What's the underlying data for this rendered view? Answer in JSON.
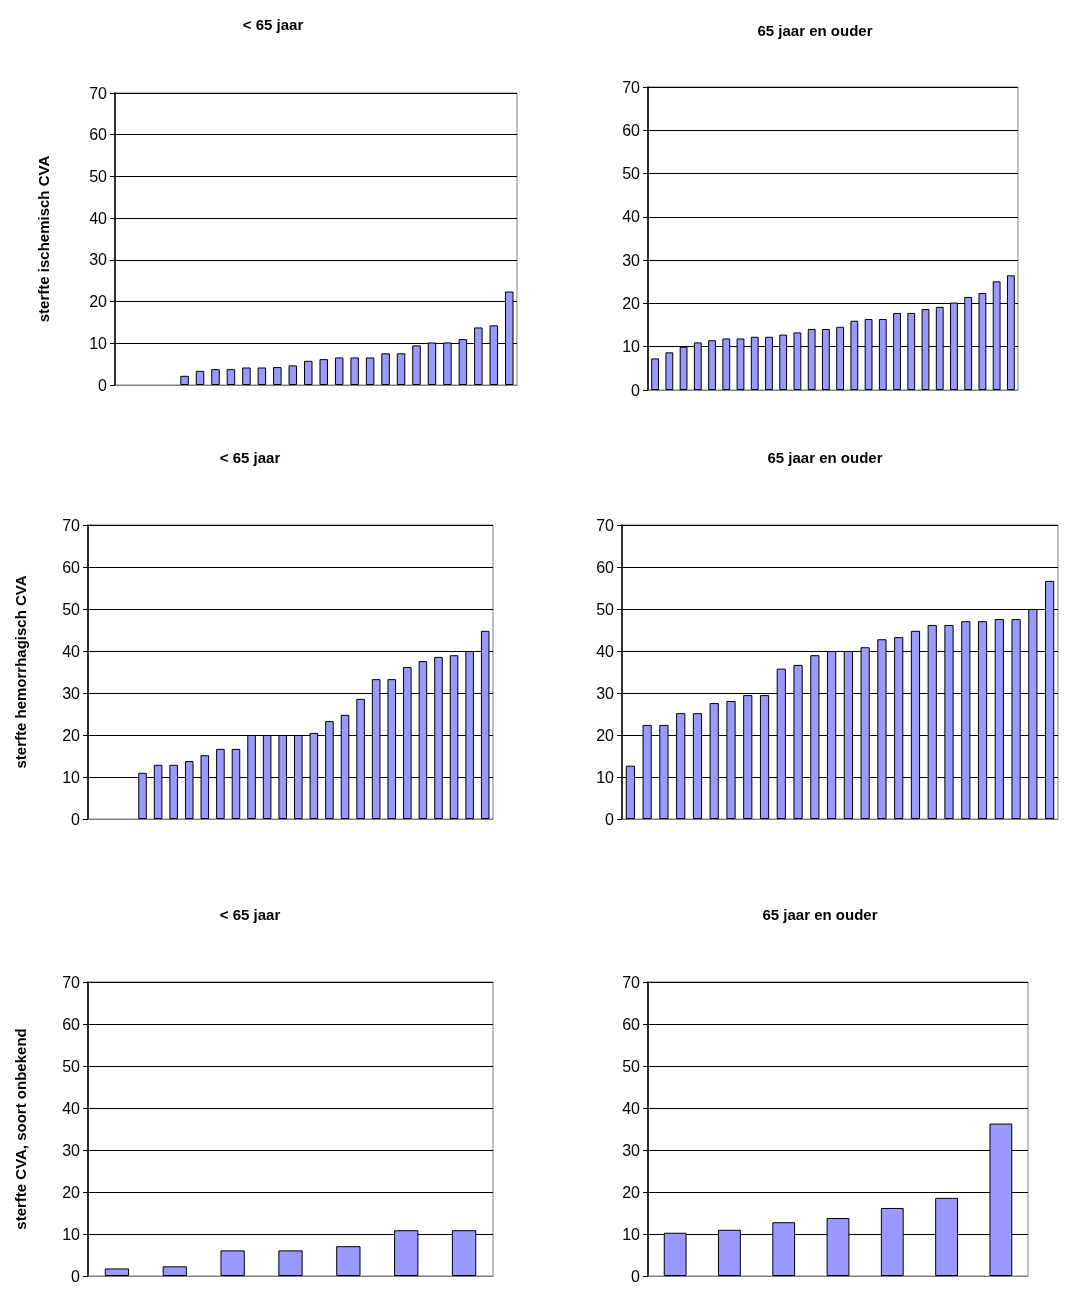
{
  "chart_data": [
    {
      "type": "bar",
      "title": "< 65 jaar",
      "ylabel": "sterfte ischemisch CVA",
      "categories": [
        null,
        null,
        null,
        null,
        null,
        null,
        null,
        null,
        null,
        null,
        null,
        null,
        null,
        null,
        null,
        null,
        null,
        null,
        null,
        null,
        null,
        null,
        null,
        null,
        null,
        null
      ],
      "values": [
        null,
        null,
        null,
        null,
        2.2,
        3.4,
        3.8,
        3.8,
        4.2,
        4.2,
        4.3,
        4.7,
        5.8,
        6.2,
        6.6,
        6.6,
        6.6,
        7.6,
        7.6,
        9.5,
        10.2,
        10.2,
        11.0,
        13.8,
        14.3,
        22.4
      ],
      "color": "#9999ff",
      "ylim": [
        0,
        70
      ],
      "yticks": [
        0,
        10,
        20,
        30,
        40,
        50,
        60,
        70
      ],
      "grid": "y",
      "tick_labels": "y"
    },
    {
      "type": "bar",
      "title": "65 jaar en ouder",
      "categories": [
        null,
        null,
        null,
        null,
        null,
        null,
        null,
        null,
        null,
        null,
        null,
        null,
        null,
        null,
        null,
        null,
        null,
        null,
        null,
        null,
        null,
        null,
        null,
        null,
        null,
        null
      ],
      "values": [
        7.3,
        8.7,
        10.0,
        11.0,
        11.5,
        11.9,
        11.9,
        12.3,
        12.3,
        12.8,
        13.3,
        14.1,
        14.1,
        14.6,
        16.0,
        16.4,
        16.4,
        17.8,
        17.8,
        18.7,
        19.2,
        20.2,
        21.5,
        22.4,
        25.1,
        26.5
      ],
      "color": "#9999ff",
      "ylim": [
        0,
        70
      ],
      "yticks": [
        0,
        10,
        20,
        30,
        40,
        50,
        60,
        70
      ],
      "grid": "y",
      "tick_labels": "y"
    },
    {
      "type": "bar",
      "title": "< 65 jaar",
      "ylabel": "sterfte hemorrhagisch CVA",
      "categories": [
        null,
        null,
        null,
        null,
        null,
        null,
        null,
        null,
        null,
        null,
        null,
        null,
        null,
        null,
        null,
        null,
        null,
        null,
        null,
        null,
        null,
        null,
        null,
        null,
        null,
        null
      ],
      "values": [
        null,
        null,
        null,
        11.0,
        12.9,
        12.9,
        13.8,
        15.2,
        16.7,
        16.7,
        20,
        20,
        20,
        20,
        20.5,
        23.3,
        24.8,
        28.6,
        33.3,
        33.3,
        36.2,
        37.6,
        38.6,
        39.0,
        40.0,
        44.8
      ],
      "color": "#9999ff",
      "ylim": [
        0,
        70
      ],
      "yticks": [
        0,
        10,
        20,
        30,
        40,
        50,
        60,
        70
      ],
      "grid": "y",
      "tick_labels": "y"
    },
    {
      "type": "bar",
      "title": "65 jaar en ouder",
      "categories": [
        null,
        null,
        null,
        null,
        null,
        null,
        null,
        null,
        null,
        null,
        null,
        null,
        null,
        null,
        null,
        null,
        null,
        null,
        null,
        null,
        null,
        null,
        null,
        null,
        null,
        null
      ],
      "values": [
        12.7,
        22.4,
        22.4,
        25.2,
        25.2,
        27.6,
        28.1,
        29.5,
        29.5,
        35.8,
        36.7,
        39.0,
        40.0,
        40.0,
        40.9,
        42.8,
        43.3,
        44.8,
        46.2,
        46.2,
        47.1,
        47.1,
        47.6,
        47.6,
        50.0,
        56.7
      ],
      "color": "#9999ff",
      "ylim": [
        0,
        70
      ],
      "yticks": [
        0,
        10,
        20,
        30,
        40,
        50,
        60,
        70
      ],
      "grid": "y",
      "tick_labels": "y"
    },
    {
      "type": "bar",
      "title": "< 65 jaar",
      "ylabel": "sterfte CVA, soort onbekend",
      "categories": [
        null,
        null,
        null,
        null,
        null,
        null,
        null
      ],
      "values": [
        1.8,
        2.3,
        6.1,
        6.1,
        7.1,
        10.9,
        10.9
      ],
      "color": "#9999ff",
      "ylim": [
        0,
        70
      ],
      "yticks": [
        0,
        10,
        20,
        30,
        40,
        50,
        60,
        70
      ],
      "grid": "y",
      "tick_labels": "y"
    },
    {
      "type": "bar",
      "title": "65 jaar en ouder",
      "categories": [
        null,
        null,
        null,
        null,
        null,
        null,
        null
      ],
      "values": [
        10.3,
        11.0,
        12.8,
        13.8,
        16.2,
        18.6,
        36.3
      ],
      "color": "#9999ff",
      "ylim": [
        0,
        70
      ],
      "yticks": [
        0,
        10,
        20,
        30,
        40,
        50,
        60,
        70
      ],
      "grid": "y",
      "tick_labels": "y"
    }
  ]
}
